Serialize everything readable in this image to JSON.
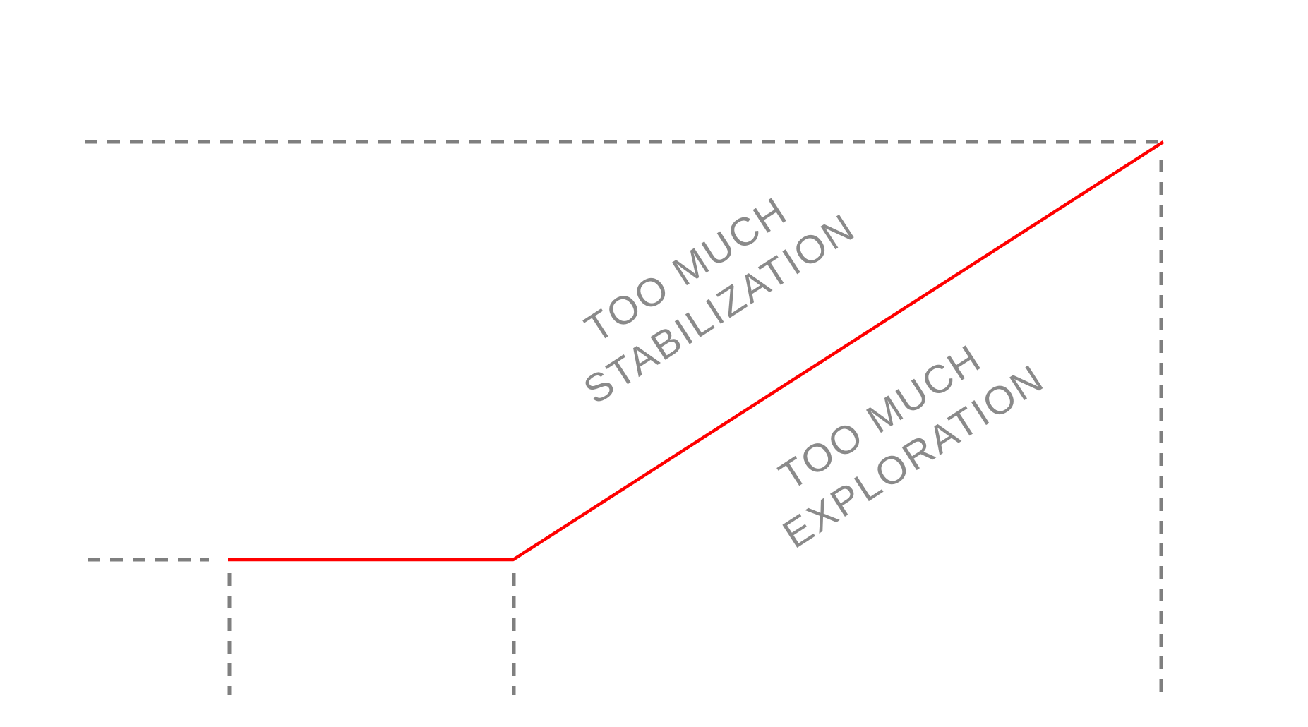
{
  "colors": {
    "guide": "#7f7f7f",
    "curve": "#ff0000",
    "label": "#8a8a8a",
    "background": "#ffffff"
  },
  "labels": {
    "stabilization": {
      "line1": "TOO MUCH",
      "line2": "STABILIZATION"
    },
    "exploration": {
      "line1": "TOO MUCH",
      "line2": "EXPLORATION"
    }
  }
}
